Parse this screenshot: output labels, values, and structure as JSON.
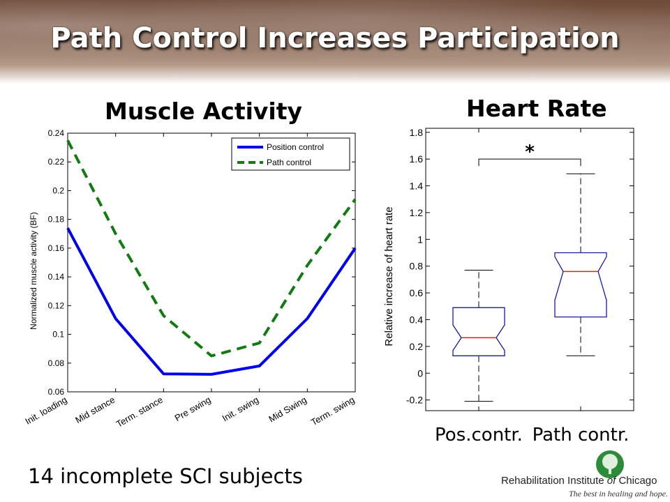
{
  "slide": {
    "title": "Path Control Increases Participation",
    "footer": "14 incomplete SCI subjects",
    "logo": {
      "name_prefix": "Rehabilitation Institute ",
      "name_of": "of",
      "name_suffix": " Chicago",
      "tagline": "The best in healing and hope.",
      "icon": "tree-logo-icon",
      "color": "#2e8b3a"
    }
  },
  "chart_data": [
    {
      "type": "line",
      "title": "Muscle Activity",
      "ylabel": "Normalized muscle activity (BF)",
      "xlabel": "",
      "categories": [
        "Init. loading",
        "Mid stance",
        "Term. stance",
        "Pre swing",
        "Init. swing",
        "Mid Swing",
        "Term. swing"
      ],
      "ylim": [
        0.06,
        0.24
      ],
      "yticks": [
        "0.06",
        "0.08",
        "0.1",
        "0.12",
        "0.14",
        "0.16",
        "0.18",
        "0.2",
        "0.22",
        "0.24"
      ],
      "legend_position": "top-right",
      "series": [
        {
          "name": "Position control",
          "color": "#0000ee",
          "style": "solid",
          "values": [
            0.174,
            0.111,
            0.0725,
            0.0722,
            0.078,
            0.111,
            0.16
          ]
        },
        {
          "name": "Path control",
          "color": "#117a11",
          "style": "dashed",
          "values": [
            0.235,
            0.17,
            0.113,
            0.085,
            0.094,
            0.148,
            0.194
          ]
        }
      ]
    },
    {
      "type": "box",
      "title": "Heart Rate",
      "ylabel": "Relative increase of heart rate",
      "categories": [
        "Pos.contr.",
        "Path contr."
      ],
      "ylim": [
        -0.28,
        1.83
      ],
      "yticks": [
        "-0.2",
        "0",
        "0.2",
        "0.4",
        "0.6",
        "0.8",
        "1",
        "1.2",
        "1.4",
        "1.6",
        "1.8"
      ],
      "box_color": "#1a1aa0",
      "median_color": "#dd2020",
      "boxes": [
        {
          "whisker_low": -0.21,
          "q1": 0.13,
          "notch_low": 0.17,
          "median": 0.265,
          "notch_high": 0.36,
          "q3": 0.49,
          "whisker_high": 0.77
        },
        {
          "whisker_low": 0.13,
          "q1": 0.42,
          "notch_low": 0.545,
          "median": 0.76,
          "notch_high": 0.87,
          "q3": 0.9,
          "whisker_high": 1.49
        }
      ],
      "significance": {
        "label": "*",
        "level": 1.6
      }
    }
  ]
}
